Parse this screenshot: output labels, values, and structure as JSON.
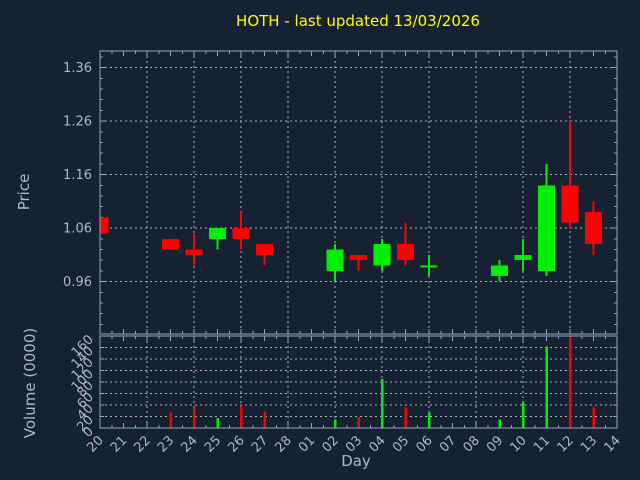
{
  "title": {
    "text": "HOTH - last updated 13/03/2026"
  },
  "colors": {
    "background": "#162231",
    "border": "#8fa8c6",
    "grid": "#a9b3bd",
    "label": "#a6bad2",
    "title": "#ffff00",
    "up": "#00ef00",
    "down": "#ff0000"
  },
  "chart_data": {
    "type": "candlestick",
    "title": "HOTH - last updated 13/03/2026",
    "xlabel": "Day",
    "x_tick_labels": [
      "20",
      "21",
      "22",
      "23",
      "24",
      "25",
      "26",
      "27",
      "28",
      "01",
      "02",
      "03",
      "04",
      "05",
      "06",
      "07",
      "08",
      "09",
      "10",
      "11",
      "12",
      "13",
      "14"
    ],
    "x_grid_indices": [
      2,
      4,
      6,
      8,
      10,
      12,
      14,
      16,
      18,
      20,
      22
    ],
    "price_panel": {
      "ylabel": "Price",
      "ytick_labels": [
        "0.96",
        "1.06",
        "1.16",
        "1.26",
        "1.36"
      ],
      "yticks": [
        0.96,
        1.06,
        1.16,
        1.26,
        1.36
      ],
      "ylim": [
        0.862,
        1.391
      ],
      "grid": true
    },
    "volume_panel": {
      "ylabel": "Volume (0000)",
      "ytick_labels": [
        "0",
        "20",
        "40",
        "60",
        "80",
        "100",
        "120",
        "140",
        "160"
      ],
      "yticks": [
        0,
        20,
        40,
        60,
        80,
        100,
        120,
        140,
        160
      ],
      "ylim": [
        0,
        160
      ],
      "grid": true
    },
    "candles": [
      {
        "x_index": 0,
        "day": "20",
        "open": 1.08,
        "high": 1.08,
        "low": 1.05,
        "close": 1.05,
        "volume": 0,
        "direction": "down"
      },
      {
        "x_index": 3,
        "day": "23",
        "open": 1.04,
        "high": 1.04,
        "low": 1.02,
        "close": 1.02,
        "volume": 27,
        "direction": "down"
      },
      {
        "x_index": 4,
        "day": "24",
        "open": 1.02,
        "high": 1.05,
        "low": 0.99,
        "close": 1.01,
        "volume": 36,
        "direction": "down"
      },
      {
        "x_index": 5,
        "day": "25",
        "open": 1.04,
        "high": 1.06,
        "low": 1.02,
        "close": 1.06,
        "volume": 17,
        "direction": "up"
      },
      {
        "x_index": 6,
        "day": "26",
        "open": 1.06,
        "high": 1.09,
        "low": 1.02,
        "close": 1.04,
        "volume": 37,
        "direction": "down"
      },
      {
        "x_index": 7,
        "day": "27",
        "open": 1.03,
        "high": 1.03,
        "low": 0.99,
        "close": 1.01,
        "volume": 29,
        "direction": "down"
      },
      {
        "x_index": 10,
        "day": "02",
        "open": 0.98,
        "high": 1.03,
        "low": 0.96,
        "close": 1.02,
        "volume": 15,
        "direction": "up"
      },
      {
        "x_index": 11,
        "day": "03",
        "open": 1.01,
        "high": 1.01,
        "low": 0.98,
        "close": 1.0,
        "volume": 19,
        "direction": "down"
      },
      {
        "x_index": 12,
        "day": "04",
        "open": 0.99,
        "high": 1.04,
        "low": 0.98,
        "close": 1.03,
        "volume": 85,
        "direction": "up"
      },
      {
        "x_index": 13,
        "day": "05",
        "open": 1.03,
        "high": 1.07,
        "low": 0.99,
        "close": 1.0,
        "volume": 36,
        "direction": "down"
      },
      {
        "x_index": 14,
        "day": "06",
        "open": 0.99,
        "high": 1.01,
        "low": 0.97,
        "close": 0.99,
        "volume": 27,
        "direction": "up"
      },
      {
        "x_index": 17,
        "day": "09",
        "open": 0.97,
        "high": 1.0,
        "low": 0.96,
        "close": 0.99,
        "volume": 15,
        "direction": "up"
      },
      {
        "x_index": 18,
        "day": "10",
        "open": 1.0,
        "high": 1.04,
        "low": 0.98,
        "close": 1.01,
        "volume": 44,
        "direction": "up"
      },
      {
        "x_index": 19,
        "day": "11",
        "open": 0.98,
        "high": 1.18,
        "low": 0.97,
        "close": 1.14,
        "volume": 142,
        "direction": "up"
      },
      {
        "x_index": 20,
        "day": "12",
        "open": 1.14,
        "high": 1.26,
        "low": 1.06,
        "close": 1.07,
        "volume": 160,
        "direction": "down"
      },
      {
        "x_index": 21,
        "day": "13",
        "open": 1.09,
        "high": 1.11,
        "low": 1.01,
        "close": 1.03,
        "volume": 36,
        "direction": "down"
      }
    ]
  }
}
